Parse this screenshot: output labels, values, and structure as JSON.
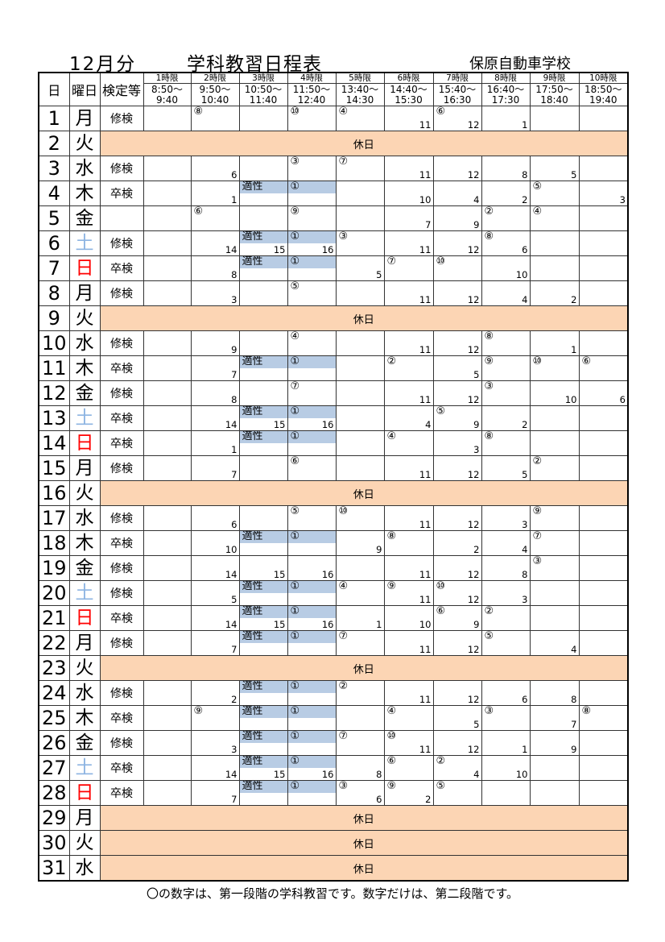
{
  "header": {
    "month": "12月分",
    "title": "学科教習日程表",
    "school": "保原自動車学校"
  },
  "columns": {
    "day": "日",
    "weekday": "曜日",
    "exam": "検定等"
  },
  "periods": [
    {
      "name": "1時限",
      "time": "8:50～\n9:40"
    },
    {
      "name": "2時限",
      "time": "9:50～\n10:40"
    },
    {
      "name": "3時限",
      "time": "10:50～\n11:40"
    },
    {
      "name": "4時限",
      "time": "11:50～\n12:40"
    },
    {
      "name": "5時限",
      "time": "13:40～\n14:30"
    },
    {
      "name": "6時限",
      "time": "14:40～\n15:30"
    },
    {
      "name": "7時限",
      "time": "15:40～\n16:30"
    },
    {
      "name": "8時限",
      "time": "16:40～\n17:30"
    },
    {
      "name": "9時限",
      "time": "17:50～\n18:40"
    },
    {
      "name": "10時限",
      "time": "18:50～\n19:40"
    }
  ],
  "holiday_label": "休日",
  "colors": {
    "holiday": "#fcd5b4",
    "aptitude_band": "#b8cce4",
    "saturday": "#8db4e2",
    "sunday": "#ff0000"
  },
  "days": [
    {
      "day": "1",
      "wd": "月",
      "exam": "修検",
      "cells": [
        null,
        {
          "c": "⑧"
        },
        null,
        {
          "c": "⑩"
        },
        {
          "c": "④"
        },
        {
          "n": "11"
        },
        {
          "c": "⑥",
          "n": "12"
        },
        {
          "n": "1"
        },
        null,
        null
      ]
    },
    {
      "day": "2",
      "wd": "火",
      "holiday": true
    },
    {
      "day": "3",
      "wd": "水",
      "exam": "修検",
      "cells": [
        null,
        {
          "n": "6"
        },
        null,
        {
          "c": "③"
        },
        {
          "c": "⑦"
        },
        {
          "n": "11"
        },
        {
          "n": "12"
        },
        {
          "n": "8"
        },
        {
          "n": "5"
        },
        null
      ]
    },
    {
      "day": "4",
      "wd": "木",
      "exam": "卒検",
      "cells": [
        null,
        {
          "n": "1"
        },
        {
          "c": "適性",
          "hl": true
        },
        {
          "c": "①",
          "hl": true
        },
        null,
        {
          "n": "10"
        },
        {
          "n": "4"
        },
        {
          "n": "2"
        },
        {
          "c": "⑤"
        },
        {
          "n": "3"
        }
      ]
    },
    {
      "day": "5",
      "wd": "金",
      "exam": "",
      "cells": [
        null,
        {
          "c": "⑥"
        },
        null,
        {
          "c": "⑨"
        },
        null,
        {
          "n": "7"
        },
        {
          "n": "9"
        },
        {
          "c": "②"
        },
        {
          "c": "④"
        },
        null
      ]
    },
    {
      "day": "6",
      "wd": "土",
      "exam": "修検",
      "cells": [
        null,
        {
          "n": "14"
        },
        {
          "c": "適性",
          "hl": true,
          "n": "15"
        },
        {
          "c": "①",
          "hl": true,
          "n": "16"
        },
        {
          "c": "③"
        },
        {
          "n": "11"
        },
        {
          "n": "12"
        },
        {
          "c": "⑧",
          "n": "6"
        },
        null,
        null
      ]
    },
    {
      "day": "7",
      "wd": "日",
      "exam": "卒検",
      "cells": [
        null,
        {
          "n": "8"
        },
        {
          "c": "適性",
          "hl": true
        },
        {
          "c": "①",
          "hl": true
        },
        {
          "n": "5"
        },
        {
          "c": "⑦"
        },
        {
          "c": "⑩"
        },
        {
          "n": "10"
        },
        null,
        null
      ]
    },
    {
      "day": "8",
      "wd": "月",
      "exam": "修検",
      "cells": [
        null,
        {
          "n": "3"
        },
        null,
        {
          "c": "⑤"
        },
        null,
        {
          "n": "11"
        },
        {
          "n": "12"
        },
        {
          "n": "4"
        },
        {
          "n": "2"
        },
        null
      ]
    },
    {
      "day": "9",
      "wd": "火",
      "holiday": true
    },
    {
      "day": "10",
      "wd": "水",
      "exam": "修検",
      "cells": [
        null,
        {
          "n": "9"
        },
        null,
        {
          "c": "④"
        },
        null,
        {
          "n": "11"
        },
        {
          "n": "12"
        },
        {
          "c": "⑧"
        },
        {
          "n": "1"
        },
        null
      ]
    },
    {
      "day": "11",
      "wd": "木",
      "exam": "卒検",
      "cells": [
        null,
        {
          "n": "7"
        },
        {
          "c": "適性",
          "hl": true
        },
        {
          "c": "①",
          "hl": true
        },
        null,
        {
          "c": "②"
        },
        {
          "n": "5"
        },
        {
          "c": "⑨"
        },
        {
          "c": "⑩"
        },
        {
          "c": "⑥"
        }
      ]
    },
    {
      "day": "12",
      "wd": "金",
      "exam": "修検",
      "cells": [
        null,
        {
          "n": "8"
        },
        null,
        {
          "c": "⑦"
        },
        null,
        {
          "n": "11"
        },
        {
          "n": "12"
        },
        {
          "c": "③"
        },
        {
          "n": "10"
        },
        {
          "n": "6"
        }
      ]
    },
    {
      "day": "13",
      "wd": "土",
      "exam": "卒検",
      "cells": [
        null,
        {
          "n": "14"
        },
        {
          "c": "適性",
          "hl": true,
          "n": "15"
        },
        {
          "c": "①",
          "hl": true,
          "n": "16"
        },
        null,
        {
          "n": "4"
        },
        {
          "c": "⑤",
          "n": "9"
        },
        {
          "n": "2"
        },
        null,
        null
      ]
    },
    {
      "day": "14",
      "wd": "日",
      "exam": "卒検",
      "cells": [
        null,
        {
          "n": "1"
        },
        {
          "c": "適性",
          "hl": true
        },
        {
          "c": "①",
          "hl": true
        },
        null,
        {
          "c": "④"
        },
        {
          "n": "3"
        },
        {
          "c": "⑧"
        },
        null,
        null
      ]
    },
    {
      "day": "15",
      "wd": "月",
      "exam": "修検",
      "cells": [
        null,
        {
          "n": "7"
        },
        null,
        {
          "c": "⑥"
        },
        null,
        {
          "n": "11"
        },
        {
          "n": "12"
        },
        {
          "n": "5"
        },
        {
          "c": "②"
        },
        null
      ]
    },
    {
      "day": "16",
      "wd": "火",
      "holiday": true
    },
    {
      "day": "17",
      "wd": "水",
      "exam": "修検",
      "cells": [
        null,
        {
          "n": "6"
        },
        null,
        {
          "c": "⑤"
        },
        {
          "c": "⑩"
        },
        {
          "n": "11"
        },
        {
          "n": "12"
        },
        {
          "n": "3"
        },
        {
          "c": "⑨"
        },
        null
      ]
    },
    {
      "day": "18",
      "wd": "木",
      "exam": "卒検",
      "cells": [
        null,
        {
          "n": "10"
        },
        {
          "c": "適性",
          "hl": true
        },
        {
          "c": "①",
          "hl": true
        },
        {
          "n": "9"
        },
        {
          "c": "⑧"
        },
        {
          "n": "2"
        },
        {
          "n": "4"
        },
        {
          "c": "⑦"
        },
        null
      ]
    },
    {
      "day": "19",
      "wd": "金",
      "exam": "修検",
      "cells": [
        null,
        {
          "n": "14"
        },
        {
          "n": "15"
        },
        {
          "n": "16"
        },
        null,
        {
          "n": "11"
        },
        {
          "n": "12"
        },
        {
          "n": "8"
        },
        {
          "c": "③"
        },
        null
      ]
    },
    {
      "day": "20",
      "wd": "土",
      "exam": "修検",
      "cells": [
        null,
        {
          "n": "5"
        },
        {
          "c": "適性",
          "hl": true
        },
        {
          "c": "①",
          "hl": true
        },
        {
          "c": "④"
        },
        {
          "c": "⑨",
          "n": "11"
        },
        {
          "c": "⑩",
          "n": "12"
        },
        {
          "n": "3"
        },
        null,
        null
      ]
    },
    {
      "day": "21",
      "wd": "日",
      "exam": "卒検",
      "cells": [
        null,
        {
          "n": "14"
        },
        {
          "c": "適性",
          "hl": true,
          "n": "15"
        },
        {
          "c": "①",
          "hl": true,
          "n": "16"
        },
        {
          "n": "1"
        },
        {
          "n": "10"
        },
        {
          "c": "⑥",
          "n": "9"
        },
        {
          "c": "②"
        },
        null,
        null
      ]
    },
    {
      "day": "22",
      "wd": "月",
      "exam": "修検",
      "cells": [
        null,
        {
          "n": "7"
        },
        {
          "c": "適性",
          "hl": true
        },
        {
          "c": "①",
          "hl": true
        },
        {
          "c": "⑦"
        },
        {
          "n": "11"
        },
        {
          "n": "12"
        },
        {
          "c": "⑤"
        },
        {
          "n": "4"
        },
        null
      ]
    },
    {
      "day": "23",
      "wd": "火",
      "holiday": true
    },
    {
      "day": "24",
      "wd": "水",
      "exam": "修検",
      "cells": [
        null,
        {
          "n": "2"
        },
        {
          "c": "適性",
          "hl": true
        },
        {
          "c": "①",
          "hl": true
        },
        {
          "c": "②"
        },
        {
          "n": "11"
        },
        {
          "n": "12"
        },
        {
          "n": "6"
        },
        {
          "n": "8"
        },
        null
      ]
    },
    {
      "day": "25",
      "wd": "木",
      "exam": "卒検",
      "cells": [
        null,
        {
          "c": "⑨"
        },
        {
          "c": "適性",
          "hl": true
        },
        {
          "c": "①",
          "hl": true
        },
        null,
        {
          "c": "④"
        },
        {
          "n": "5"
        },
        {
          "c": "③"
        },
        {
          "n": "7"
        },
        {
          "c": "⑧"
        }
      ]
    },
    {
      "day": "26",
      "wd": "金",
      "exam": "修検",
      "cells": [
        null,
        {
          "n": "3"
        },
        {
          "c": "適性",
          "hl": true
        },
        {
          "c": "①",
          "hl": true
        },
        {
          "c": "⑦"
        },
        {
          "c": "⑩",
          "n": "11"
        },
        {
          "n": "12"
        },
        {
          "n": "1"
        },
        {
          "n": "9"
        },
        null
      ]
    },
    {
      "day": "27",
      "wd": "土",
      "exam": "卒検",
      "cells": [
        null,
        {
          "n": "14"
        },
        {
          "c": "適性",
          "hl": true,
          "n": "15"
        },
        {
          "c": "①",
          "hl": true,
          "n": "16"
        },
        {
          "n": "8"
        },
        {
          "c": "⑥"
        },
        {
          "c": "②",
          "n": "4"
        },
        {
          "n": "10"
        },
        null,
        null
      ]
    },
    {
      "day": "28",
      "wd": "日",
      "exam": "卒検",
      "cells": [
        null,
        {
          "n": "7"
        },
        {
          "c": "適性",
          "hl": true
        },
        {
          "c": "①",
          "hl": true
        },
        {
          "c": "③",
          "n": "6"
        },
        {
          "c": "⑨",
          "n": "2"
        },
        {
          "c": "⑤"
        },
        null,
        null,
        null
      ]
    },
    {
      "day": "29",
      "wd": "月",
      "holiday": true
    },
    {
      "day": "30",
      "wd": "火",
      "holiday": true
    },
    {
      "day": "31",
      "wd": "水",
      "holiday": true
    }
  ],
  "footer_note": "〇の数字は、第一段階の学科教習です。数字だけは、第二段階です。"
}
